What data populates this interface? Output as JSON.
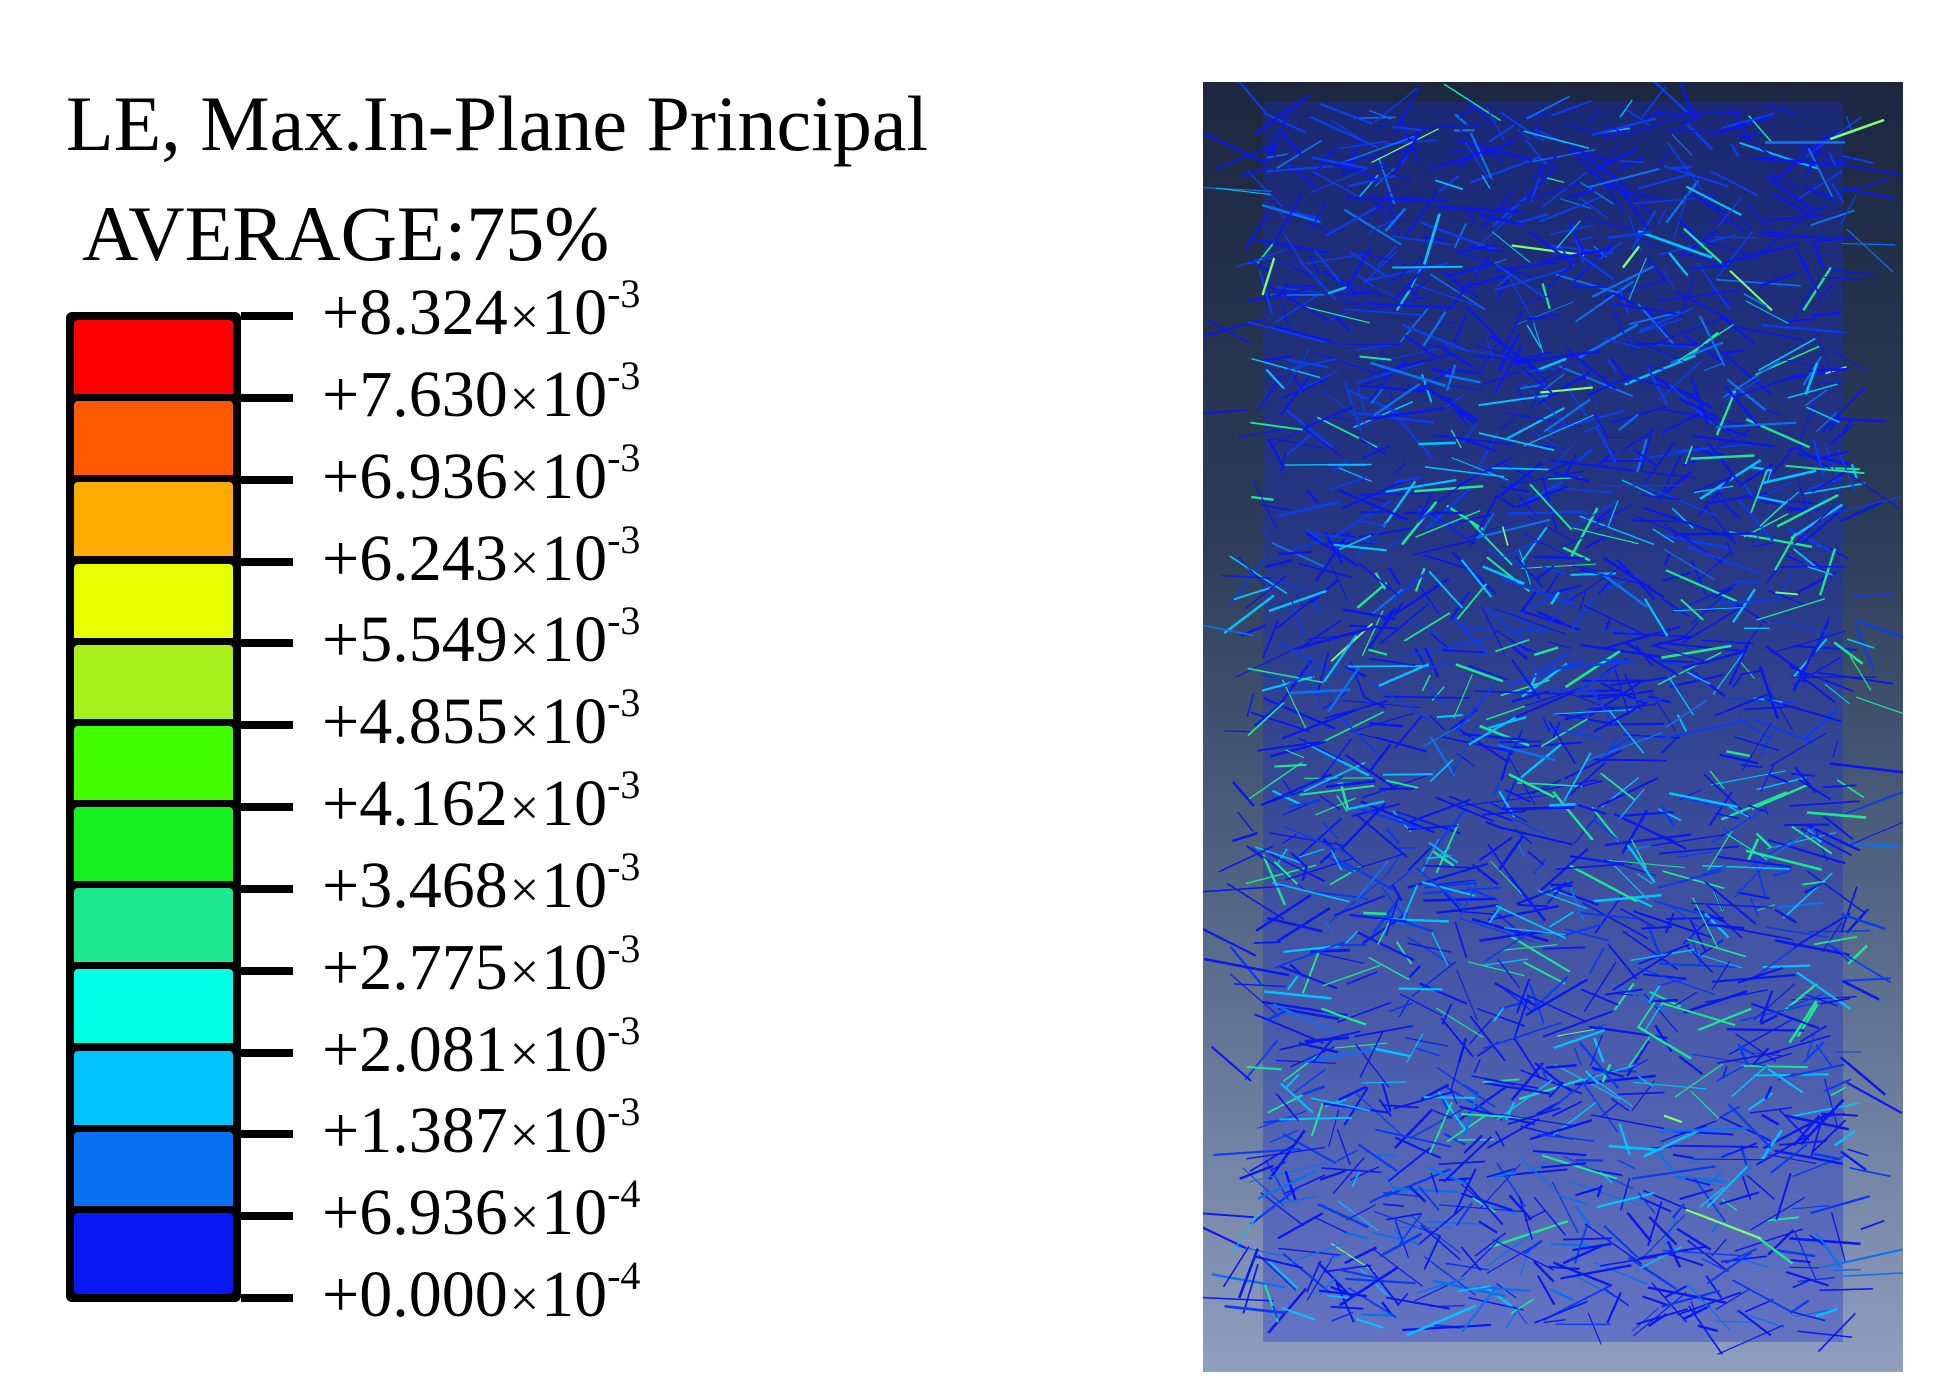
{
  "legend": {
    "title": "LE, Max.In-Plane Principal",
    "subtitle": "AVERAGE:75%",
    "entries": [
      {
        "mantissa": "+8.324",
        "exponent": "-3"
      },
      {
        "mantissa": "+7.630",
        "exponent": "-3"
      },
      {
        "mantissa": "+6.936",
        "exponent": "-3"
      },
      {
        "mantissa": "+6.243",
        "exponent": "-3"
      },
      {
        "mantissa": "+5.549",
        "exponent": "-3"
      },
      {
        "mantissa": "+4.855",
        "exponent": "-3"
      },
      {
        "mantissa": "+4.162",
        "exponent": "-3"
      },
      {
        "mantissa": "+3.468",
        "exponent": "-3"
      },
      {
        "mantissa": "+2.775",
        "exponent": "-3"
      },
      {
        "mantissa": "+2.081",
        "exponent": "-3"
      },
      {
        "mantissa": "+1.387",
        "exponent": "-3"
      },
      {
        "mantissa": "+6.936",
        "exponent": "-4"
      },
      {
        "mantissa": "+0.000",
        "exponent": "-4"
      }
    ],
    "times_symbol": "×",
    "base": "10",
    "colors": [
      "#ff0000",
      "#ff5a00",
      "#ffaa00",
      "#e8ff00",
      "#a6f01e",
      "#44ff00",
      "#16f020",
      "#1de890",
      "#00ffe4",
      "#00c4ff",
      "#0a72f0",
      "#0818f0"
    ]
  },
  "viewport": {
    "background_top": "#1c2740",
    "background_bottom": "#909ebf",
    "fiber_colors": [
      "#0818f0",
      "#0a3cf0",
      "#0a72f0",
      "#00c4ff",
      "#1de890",
      "#7dff70"
    ]
  }
}
